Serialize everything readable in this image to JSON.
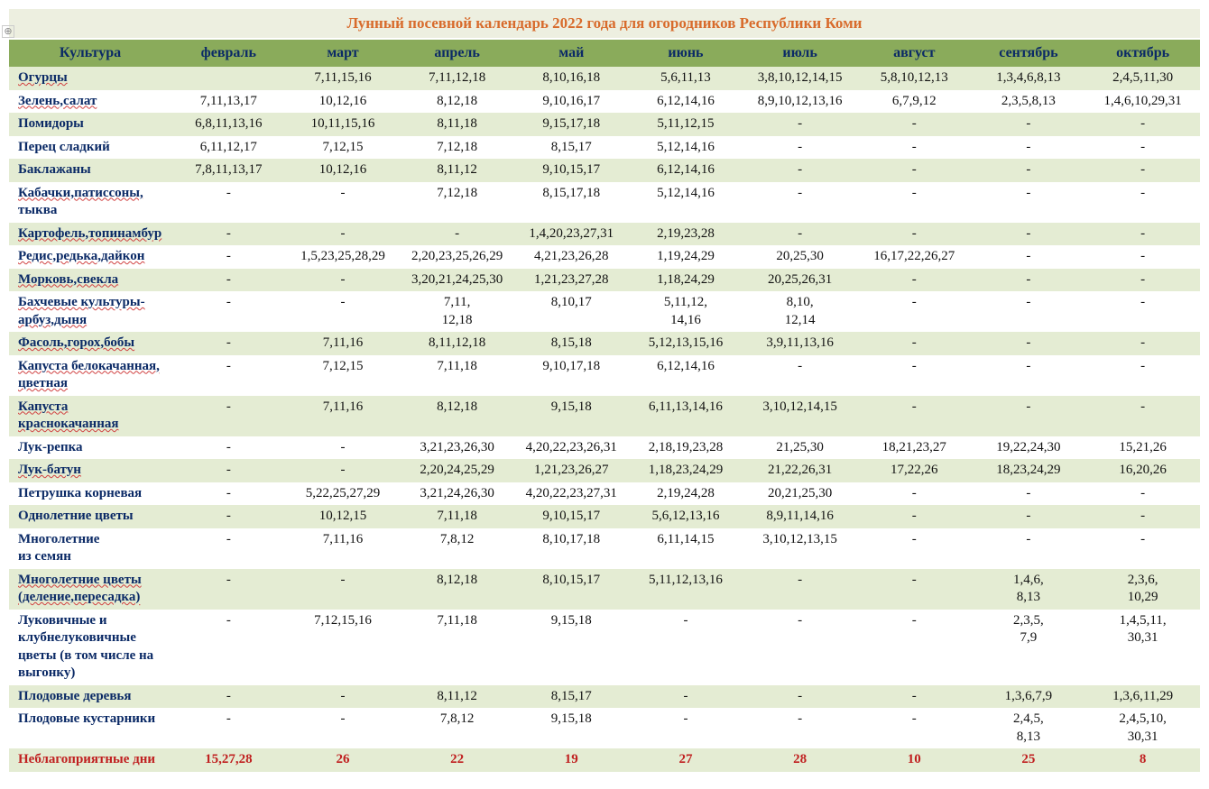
{
  "title": "Лунный посевной календарь 2022 года для огородников Республики Коми",
  "title_color": "#d86b2c",
  "title_bg": "#edefe0",
  "header_bg": "#8aab5b",
  "header_color": "#0b2a66",
  "culture_color": "#0b2a66",
  "cell_color": "#111111",
  "row_even_bg": "#e4ecd3",
  "row_odd_bg": "#ffffff",
  "bad_color": "#c02020",
  "columns": [
    "Культура",
    "февраль",
    "март",
    "апрель",
    "май",
    "июнь",
    "июль",
    "август",
    "сентябрь",
    "октябрь"
  ],
  "rows": [
    {
      "c": "Огурцы",
      "u": true,
      "v": [
        "",
        "7,11,15,16",
        "7,11,12,18",
        "8,10,16,18",
        "5,6,11,13",
        "3,8,10,12,14,15",
        "5,8,10,12,13",
        "1,3,4,6,8,13",
        "2,4,5,11,30"
      ]
    },
    {
      "c": "Зелень,салат",
      "u": true,
      "v": [
        "7,11,13,17",
        "10,12,16",
        "8,12,18",
        "9,10,16,17",
        "6,12,14,16",
        "8,9,10,12,13,16",
        "6,7,9,12",
        "2,3,5,8,13",
        "1,4,6,10,29,31"
      ]
    },
    {
      "c": "Помидоры",
      "u": false,
      "v": [
        "6,8,11,13,16",
        "10,11,15,16",
        "8,11,18",
        "9,15,17,18",
        "5,11,12,15",
        "-",
        "-",
        "-",
        "-"
      ]
    },
    {
      "c": "Перец сладкий",
      "u": false,
      "v": [
        "6,11,12,17",
        "7,12,15",
        "7,12,18",
        "8,15,17",
        "5,12,14,16",
        "-",
        "-",
        "-",
        "-"
      ]
    },
    {
      "c": "Баклажаны",
      "u": false,
      "v": [
        "7,8,11,13,17",
        "10,12,16",
        "8,11,12",
        "9,10,15,17",
        "6,12,14,16",
        "-",
        "-",
        "-",
        "-"
      ]
    },
    {
      "c": "Кабачки,патиссоны,\nтыква",
      "u": true,
      "v": [
        "-",
        "-",
        "7,12,18",
        "8,15,17,18",
        "5,12,14,16",
        "-",
        "-",
        "-",
        "-"
      ]
    },
    {
      "c": "Картофель,топинамбур",
      "u": true,
      "v": [
        "-",
        "-",
        "-",
        "1,4,20,23,27,31",
        "2,19,23,28",
        "-",
        "-",
        "-",
        "-"
      ]
    },
    {
      "c": "Редис,редька,дайкон",
      "u": true,
      "v": [
        "-",
        "1,5,23,25,28,29",
        "2,20,23,25,26,29",
        "4,21,23,26,28",
        "1,19,24,29",
        "20,25,30",
        "16,17,22,26,27",
        "-",
        "-"
      ]
    },
    {
      "c": "Морковь,свекла",
      "u": true,
      "v": [
        "-",
        "-",
        "3,20,21,24,25,30",
        "1,21,23,27,28",
        "1,18,24,29",
        "20,25,26,31",
        "-",
        "-",
        "-"
      ]
    },
    {
      "c": "Бахчевые культуры-арбуз,дыня",
      "u": true,
      "v": [
        "-",
        "-",
        "7,11,\n12,18",
        "8,10,17",
        "5,11,12,\n14,16",
        "8,10,\n12,14",
        "-",
        "-",
        "-"
      ]
    },
    {
      "c": "Фасоль,горох,бобы",
      "u": true,
      "v": [
        "-",
        "7,11,16",
        "8,11,12,18",
        "8,15,18",
        "5,12,13,15,16",
        "3,9,11,13,16",
        "-",
        "-",
        "-"
      ]
    },
    {
      "c": "Капуста белокачанная, цветная",
      "u": true,
      "v": [
        "-",
        "7,12,15",
        "7,11,18",
        "9,10,17,18",
        "6,12,14,16",
        "-",
        "-",
        "-",
        "-"
      ]
    },
    {
      "c": "Капуста краснокачанная",
      "u": true,
      "v": [
        "-",
        "7,11,16",
        "8,12,18",
        "9,15,18",
        "6,11,13,14,16",
        "3,10,12,14,15",
        "-",
        "-",
        "-"
      ]
    },
    {
      "c": "Лук-репка",
      "u": false,
      "v": [
        "-",
        "-",
        "3,21,23,26,30",
        "4,20,22,23,26,31",
        "2,18,19,23,28",
        "21,25,30",
        "18,21,23,27",
        "19,22,24,30",
        "15,21,26"
      ]
    },
    {
      "c": "Лук-батун",
      "u": true,
      "v": [
        "-",
        "-",
        "2,20,24,25,29",
        "1,21,23,26,27",
        "1,18,23,24,29",
        "21,22,26,31",
        "17,22,26",
        "18,23,24,29",
        "16,20,26"
      ]
    },
    {
      "c": "Петрушка корневая",
      "u": false,
      "v": [
        "-",
        "5,22,25,27,29",
        "3,21,24,26,30",
        "4,20,22,23,27,31",
        "2,19,24,28",
        "20,21,25,30",
        "-",
        "-",
        "-"
      ]
    },
    {
      "c": "Однолетние цветы",
      "u": false,
      "v": [
        "-",
        "10,12,15",
        "7,11,18",
        "9,10,15,17",
        "5,6,12,13,16",
        "8,9,11,14,16",
        "-",
        "-",
        "-"
      ]
    },
    {
      "c": "Многолетние\n из семян",
      "u": false,
      "v": [
        "-",
        "7,11,16",
        "7,8,12",
        "8,10,17,18",
        "6,11,14,15",
        "3,10,12,13,15",
        "-",
        "-",
        "-"
      ]
    },
    {
      "c": "Многолетние цветы (деление,пересадка)",
      "u": true,
      "v": [
        "-",
        "-",
        "8,12,18",
        "8,10,15,17",
        "5,11,12,13,16",
        "-",
        "-",
        "1,4,6,\n8,13",
        "2,3,6,\n10,29"
      ]
    },
    {
      "c": "Луковичные и клубнелуковичные цветы (в том числе на выгонку)",
      "u": false,
      "v": [
        "-",
        "7,12,15,16",
        "7,11,18",
        "9,15,18",
        "-",
        "-",
        "-",
        "2,3,5,\n7,9",
        "1,4,5,11,\n30,31"
      ]
    },
    {
      "c": "Плодовые деревья",
      "u": false,
      "v": [
        "-",
        "-",
        "8,11,12",
        "8,15,17",
        "-",
        "-",
        "-",
        "1,3,6,7,9",
        "1,3,6,11,29"
      ]
    },
    {
      "c": "Плодовые кустарники",
      "u": false,
      "v": [
        "-",
        "-",
        "7,8,12",
        "9,15,18",
        "-",
        "-",
        "-",
        "2,4,5,\n8,13",
        "2,4,5,10,\n30,31"
      ]
    }
  ],
  "bad_row": {
    "c": "Неблагоприятные дни",
    "v": [
      "15,27,28",
      "26",
      "22",
      "19",
      "27",
      "28",
      "10",
      "25",
      "8"
    ]
  }
}
